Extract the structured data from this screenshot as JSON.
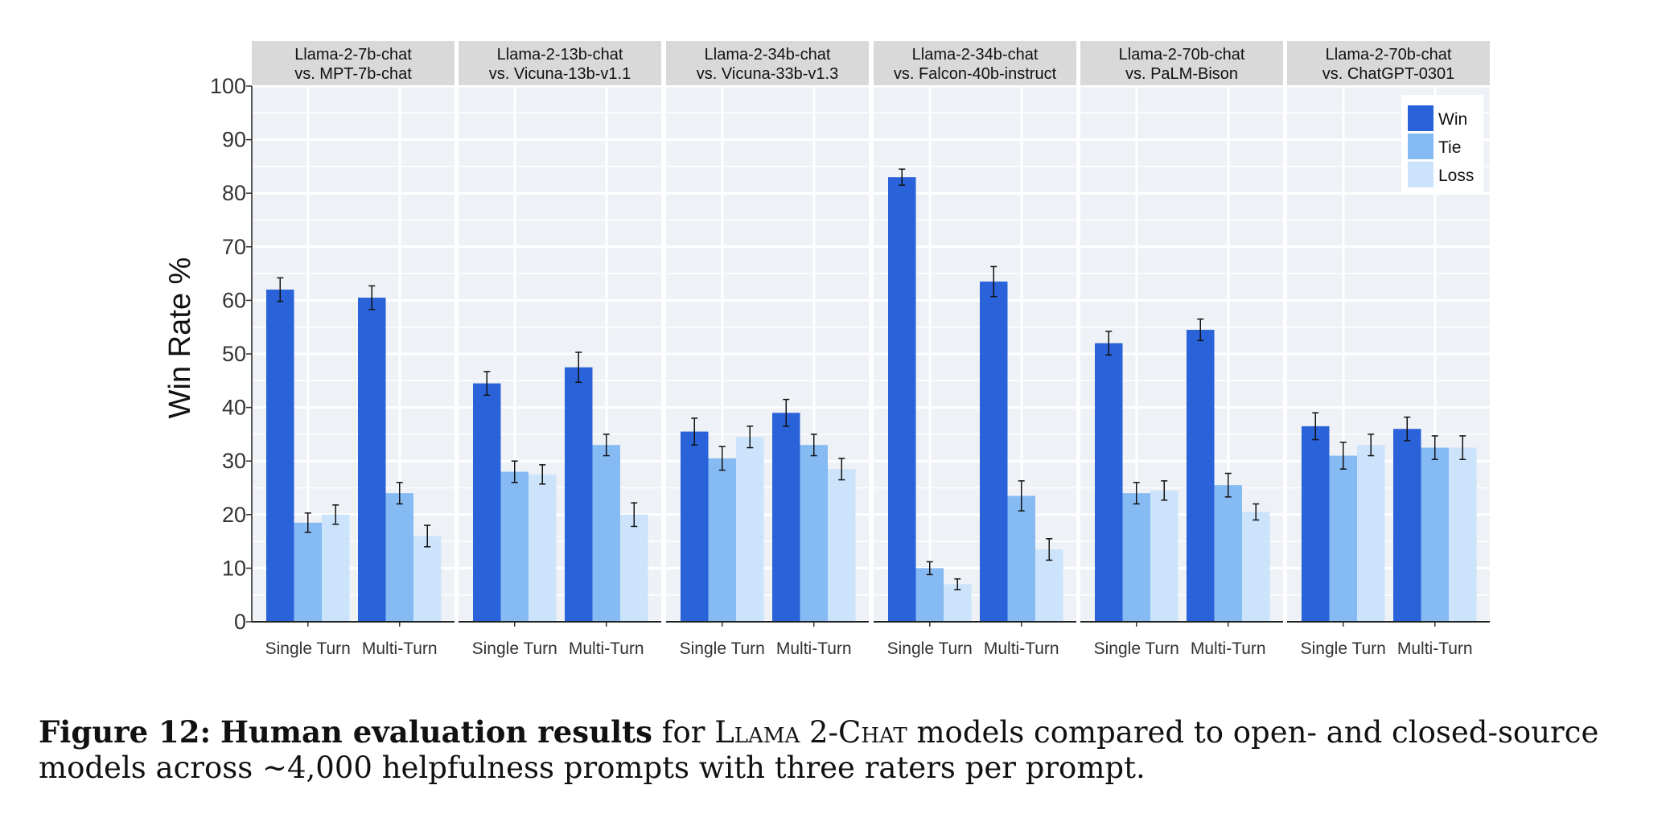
{
  "chart_data": {
    "type": "bar",
    "ylabel": "Win Rate %",
    "ylim": [
      0,
      100
    ],
    "yticks": [
      0,
      10,
      20,
      30,
      40,
      50,
      60,
      70,
      80,
      90,
      100
    ],
    "categories": [
      "Single Turn",
      "Multi-Turn"
    ],
    "legend": {
      "placement": "top-right",
      "entries": [
        "Win",
        "Tie",
        "Loss"
      ],
      "colors": [
        "#2962d9",
        "#86baf3",
        "#cbe3fb"
      ]
    },
    "grid": true,
    "panels": [
      {
        "title_line1": "Llama-2-7b-chat",
        "title_line2": "vs. MPT-7b-chat",
        "series": [
          {
            "name": "Win",
            "values": [
              62,
              60.5
            ],
            "errors": [
              2.2,
              2.2
            ]
          },
          {
            "name": "Tie",
            "values": [
              18.5,
              24
            ],
            "errors": [
              1.8,
              2.0
            ]
          },
          {
            "name": "Loss",
            "values": [
              20,
              16
            ],
            "errors": [
              1.8,
              2.0
            ]
          }
        ]
      },
      {
        "title_line1": "Llama-2-13b-chat",
        "title_line2": "vs. Vicuna-13b-v1.1",
        "series": [
          {
            "name": "Win",
            "values": [
              44.5,
              47.5
            ],
            "errors": [
              2.2,
              2.8
            ]
          },
          {
            "name": "Tie",
            "values": [
              28,
              33
            ],
            "errors": [
              2.0,
              2.0
            ]
          },
          {
            "name": "Loss",
            "values": [
              27.5,
              20
            ],
            "errors": [
              1.8,
              2.2
            ]
          }
        ]
      },
      {
        "title_line1": "Llama-2-34b-chat",
        "title_line2": "vs. Vicuna-33b-v1.3",
        "series": [
          {
            "name": "Win",
            "values": [
              35.5,
              39
            ],
            "errors": [
              2.5,
              2.5
            ]
          },
          {
            "name": "Tie",
            "values": [
              30.5,
              33
            ],
            "errors": [
              2.2,
              2.0
            ]
          },
          {
            "name": "Loss",
            "values": [
              34.5,
              28.5
            ],
            "errors": [
              2.0,
              2.0
            ]
          }
        ]
      },
      {
        "title_line1": "Llama-2-34b-chat",
        "title_line2": "vs. Falcon-40b-instruct",
        "series": [
          {
            "name": "Win",
            "values": [
              83,
              63.5
            ],
            "errors": [
              1.5,
              2.8
            ]
          },
          {
            "name": "Tie",
            "values": [
              10,
              23.5
            ],
            "errors": [
              1.2,
              2.8
            ]
          },
          {
            "name": "Loss",
            "values": [
              7,
              13.5
            ],
            "errors": [
              1.0,
              2.0
            ]
          }
        ]
      },
      {
        "title_line1": "Llama-2-70b-chat",
        "title_line2": "vs. PaLM-Bison",
        "series": [
          {
            "name": "Win",
            "values": [
              52,
              54.5
            ],
            "errors": [
              2.2,
              2.0
            ]
          },
          {
            "name": "Tie",
            "values": [
              24,
              25.5
            ],
            "errors": [
              2.0,
              2.2
            ]
          },
          {
            "name": "Loss",
            "values": [
              24.5,
              20.5
            ],
            "errors": [
              1.8,
              1.5
            ]
          }
        ]
      },
      {
        "title_line1": "Llama-2-70b-chat",
        "title_line2": "vs. ChatGPT-0301",
        "series": [
          {
            "name": "Win",
            "values": [
              36.5,
              36
            ],
            "errors": [
              2.5,
              2.2
            ]
          },
          {
            "name": "Tie",
            "values": [
              31,
              32.5
            ],
            "errors": [
              2.5,
              2.2
            ]
          },
          {
            "name": "Loss",
            "values": [
              33,
              32.5
            ],
            "errors": [
              2.0,
              2.2
            ]
          }
        ]
      }
    ]
  },
  "caption": {
    "label": "Figure 12:",
    "bold_text": "Human evaluation results",
    "text_before_name": "for",
    "model_name": "Llama 2-Chat",
    "text_after_name": "models compared to open- and closed-source models across ~4,000 helpfulness prompts with three raters per prompt."
  }
}
